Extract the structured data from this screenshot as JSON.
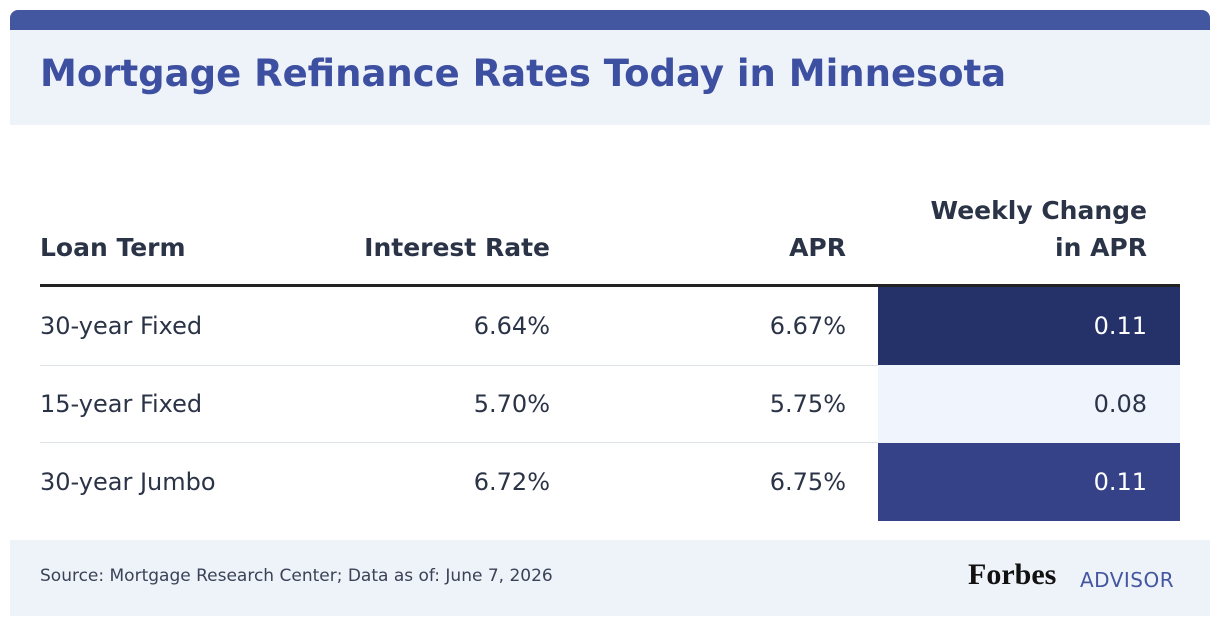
{
  "header": {
    "title": "Mortgage Refinance Rates Today in Minnesota"
  },
  "table": {
    "columns": [
      "Loan Term",
      "Interest Rate",
      "APR",
      "Weekly Change in APR"
    ],
    "rows": [
      [
        "30-year Fixed",
        "6.64%",
        "6.67%",
        "0.11"
      ],
      [
        "15-year Fixed",
        "5.70%",
        "5.75%",
        "0.08"
      ],
      [
        "30-year Jumbo",
        "6.72%",
        "6.75%",
        "0.11"
      ]
    ]
  },
  "footer": {
    "source": "Source: Mortgage Research Center; Data as of: June 7, 2026",
    "brand": "Forbes",
    "brand_sub": "ADVISOR"
  }
}
